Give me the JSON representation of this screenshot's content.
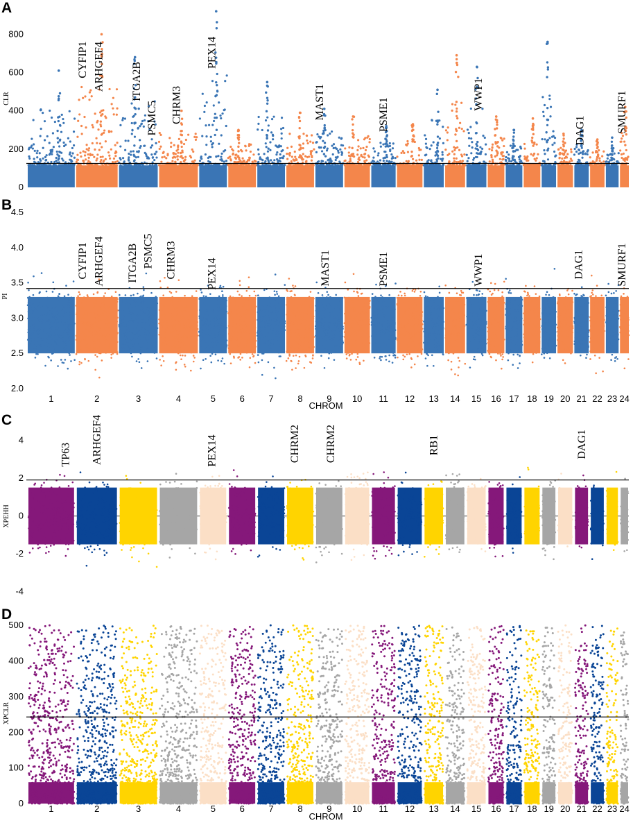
{
  "colors": {
    "blue": "#3a75b5",
    "orange": "#f4864b",
    "purple": "#85187a",
    "navy": "#0a4596",
    "yellow": "#ffd400",
    "gray": "#a6a6a6",
    "peach": "#fbdfc6",
    "axis": "#000000"
  },
  "chart_data": [
    {
      "id": "A",
      "panel_letter": "A",
      "type": "scatter",
      "subtype": "manhattan",
      "ylabel": "CLR",
      "xlabel": "",
      "ylim": [
        0,
        950
      ],
      "yticks": [
        "0",
        "200",
        "400",
        "600",
        "800"
      ],
      "ytick_values": [
        0,
        200,
        400,
        600,
        800
      ],
      "threshold": 125,
      "color_scheme": [
        "blue",
        "orange"
      ],
      "chromosomes": [
        "1",
        "2",
        "3",
        "4",
        "5",
        "6",
        "7",
        "8",
        "9",
        "10",
        "11",
        "12",
        "13",
        "14",
        "15",
        "16",
        "17",
        "18",
        "19",
        "20",
        "21",
        "22",
        "23",
        "24"
      ],
      "peaks": [
        {
          "chrom": "1",
          "max": 610
        },
        {
          "chrom": "2",
          "max": 800
        },
        {
          "chrom": "3",
          "max": 680
        },
        {
          "chrom": "4",
          "max": 400
        },
        {
          "chrom": "5",
          "max": 920
        },
        {
          "chrom": "6",
          "max": 300
        },
        {
          "chrom": "7",
          "max": 550
        },
        {
          "chrom": "8",
          "max": 390
        },
        {
          "chrom": "9",
          "max": 410
        },
        {
          "chrom": "10",
          "max": 370
        },
        {
          "chrom": "11",
          "max": 320
        },
        {
          "chrom": "12",
          "max": 330
        },
        {
          "chrom": "13",
          "max": 510
        },
        {
          "chrom": "14",
          "max": 690
        },
        {
          "chrom": "15",
          "max": 630
        },
        {
          "chrom": "16",
          "max": 370
        },
        {
          "chrom": "17",
          "max": 300
        },
        {
          "chrom": "18",
          "max": 360
        },
        {
          "chrom": "19",
          "max": 760
        },
        {
          "chrom": "20",
          "max": 280
        },
        {
          "chrom": "21",
          "max": 300
        },
        {
          "chrom": "22",
          "max": 250
        },
        {
          "chrom": "23",
          "max": 260
        },
        {
          "chrom": "24",
          "max": 420
        }
      ],
      "annotations": [
        {
          "label": "CYFIP1",
          "chrom": "2",
          "offset": 0.15,
          "y": 570
        },
        {
          "label": "ARHGEF4",
          "chrom": "2",
          "offset": 0.55,
          "y": 500
        },
        {
          "label": "ITGA2B",
          "chrom": "3",
          "offset": 0.45,
          "y": 450
        },
        {
          "label": "PSMC5",
          "chrom": "3",
          "offset": 0.85,
          "y": 270
        },
        {
          "label": "CHRM3",
          "chrom": "4",
          "offset": 0.45,
          "y": 330
        },
        {
          "label": "PEX14",
          "chrom": "5",
          "offset": 0.45,
          "y": 620
        },
        {
          "label": "MAST1",
          "chrom": "9",
          "offset": 0.15,
          "y": 350
        },
        {
          "label": "PSME1",
          "chrom": "11",
          "offset": 0.5,
          "y": 290
        },
        {
          "label": "WWP1",
          "chrom": "15",
          "offset": 0.6,
          "y": 400
        },
        {
          "label": "DAG1",
          "chrom": "21",
          "offset": 0.4,
          "y": 220
        },
        {
          "label": "SMURF1",
          "chrom": "24",
          "offset": 0.2,
          "y": 280
        }
      ]
    },
    {
      "id": "B",
      "panel_letter": "B",
      "type": "scatter",
      "subtype": "manhattan",
      "ylabel": "PI",
      "xlabel": "CHROM",
      "ylim": [
        2.0,
        4.5
      ],
      "yticks": [
        "2.0",
        "2.5",
        "3.0",
        "3.5",
        "4.0",
        "4.5"
      ],
      "ytick_values": [
        2.0,
        2.5,
        3.0,
        3.5,
        4.0,
        4.5
      ],
      "threshold": 3.42,
      "color_scheme": [
        "blue",
        "orange"
      ],
      "chromosomes": [
        "1",
        "2",
        "3",
        "4",
        "5",
        "6",
        "7",
        "8",
        "9",
        "10",
        "11",
        "12",
        "13",
        "14",
        "15",
        "16",
        "17",
        "18",
        "19",
        "20",
        "21",
        "22",
        "23",
        "24"
      ],
      "annotations": [
        {
          "label": "CYFIP1",
          "chrom": "2",
          "offset": 0.15,
          "y": 3.55
        },
        {
          "label": "ARHGEF4",
          "chrom": "2",
          "offset": 0.55,
          "y": 3.45
        },
        {
          "label": "ITGA2B",
          "chrom": "3",
          "offset": 0.35,
          "y": 3.5
        },
        {
          "label": "PSMC5",
          "chrom": "3",
          "offset": 0.75,
          "y": 3.7
        },
        {
          "label": "CHRM3",
          "chrom": "4",
          "offset": 0.3,
          "y": 3.55
        },
        {
          "label": "PEX14",
          "chrom": "5",
          "offset": 0.45,
          "y": 3.4
        },
        {
          "label": "MAST1",
          "chrom": "9",
          "offset": 0.35,
          "y": 3.45
        },
        {
          "label": "PSME1",
          "chrom": "11",
          "offset": 0.5,
          "y": 3.45
        },
        {
          "label": "WWP1",
          "chrom": "15",
          "offset": 0.6,
          "y": 3.45
        },
        {
          "label": "DAG1",
          "chrom": "21",
          "offset": 0.3,
          "y": 3.55
        },
        {
          "label": "SMURF1",
          "chrom": "24",
          "offset": 0.2,
          "y": 3.45
        }
      ]
    },
    {
      "id": "C",
      "panel_letter": "C",
      "type": "scatter",
      "subtype": "manhattan",
      "ylabel": "XPEHH",
      "xlabel": "",
      "ylim": [
        -5,
        4.6
      ],
      "yticks": [
        "-4",
        "-2",
        "0",
        "2",
        "4"
      ],
      "ytick_values": [
        -4,
        -2,
        0,
        2,
        4
      ],
      "threshold": 1.9,
      "color_scheme": [
        "purple",
        "navy",
        "yellow",
        "gray",
        "peach"
      ],
      "chromosomes": [
        "1",
        "2",
        "3",
        "4",
        "5",
        "6",
        "7",
        "8",
        "9",
        "10",
        "11",
        "12",
        "13",
        "14",
        "15",
        "16",
        "17",
        "18",
        "19",
        "20",
        "21",
        "22",
        "23",
        "24"
      ],
      "annotations": [
        {
          "label": "TP63",
          "chrom": "1",
          "offset": 0.8,
          "y": 2.6
        },
        {
          "label": "ARHGEF4",
          "chrom": "2",
          "offset": 0.5,
          "y": 2.7
        },
        {
          "label": "PEX14",
          "chrom": "5",
          "offset": 0.45,
          "y": 2.6
        },
        {
          "label": "CHRM2",
          "chrom": "8",
          "offset": 0.3,
          "y": 2.8
        },
        {
          "label": "CHRM2",
          "chrom": "9",
          "offset": 0.55,
          "y": 2.8
        },
        {
          "label": "RB1",
          "chrom": "13",
          "offset": 0.5,
          "y": 3.2
        },
        {
          "label": "DAG1",
          "chrom": "21",
          "offset": 0.5,
          "y": 3.0
        }
      ]
    },
    {
      "id": "D",
      "panel_letter": "D",
      "type": "scatter",
      "subtype": "manhattan",
      "ylabel": "XPCLR",
      "xlabel": "CHROM",
      "ylim": [
        0,
        510
      ],
      "yticks": [
        "0",
        "100",
        "200",
        "300",
        "400",
        "500"
      ],
      "ytick_values": [
        0,
        100,
        200,
        300,
        400,
        500
      ],
      "threshold": 243,
      "color_scheme": [
        "purple",
        "navy",
        "yellow",
        "gray",
        "peach"
      ],
      "chromosomes": [
        "1",
        "2",
        "3",
        "4",
        "5",
        "6",
        "7",
        "8",
        "9",
        "10",
        "11",
        "12",
        "13",
        "14",
        "15",
        "16",
        "17",
        "18",
        "19",
        "20",
        "21",
        "22",
        "23",
        "24"
      ],
      "annotations": []
    }
  ]
}
